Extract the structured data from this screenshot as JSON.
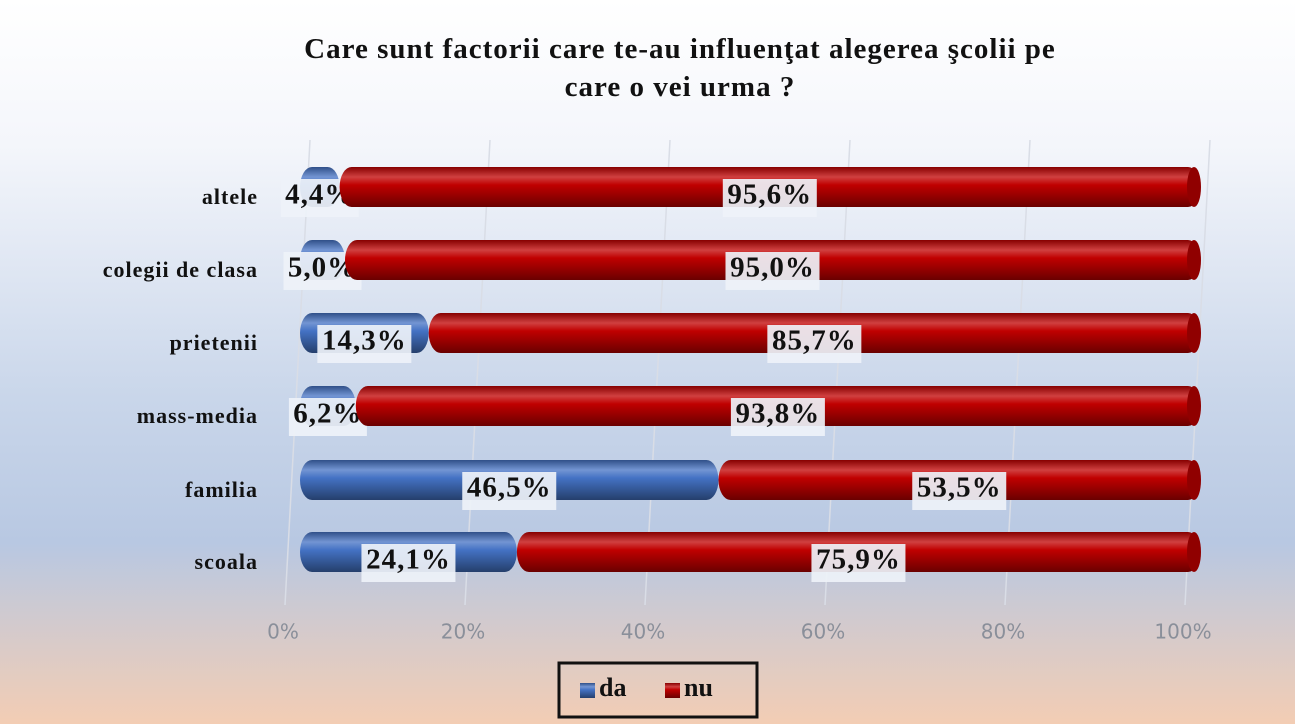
{
  "chart_data": {
    "type": "stacked-bar",
    "title": "Care sunt factorii care te-au influenţat alegerea şcolii pe care o vei urma ?",
    "categories": [
      "altele",
      "colegii de clasa",
      "prietenii",
      "mass-media",
      "familia",
      "scoala"
    ],
    "series": [
      {
        "name": "da",
        "color": "#4472c4",
        "values": [
          4.4,
          5.0,
          14.3,
          6.2,
          46.5,
          24.1
        ],
        "value_labels": [
          "4,4%",
          "5,0%",
          "14,3%",
          "6,2%",
          "46,5%",
          "24,1%"
        ]
      },
      {
        "name": "nu",
        "color": "#c00000",
        "values": [
          95.6,
          95.0,
          85.7,
          93.8,
          53.5,
          75.9
        ],
        "value_labels": [
          "95,6%",
          "95,0%",
          "85,7%",
          "93,8%",
          "53,5%",
          "75,9%"
        ]
      }
    ],
    "xlim": [
      0,
      100
    ],
    "xticks": [
      {
        "value": 0,
        "label": "0%"
      },
      {
        "value": 20,
        "label": "20%"
      },
      {
        "value": 40,
        "label": "40%"
      },
      {
        "value": 60,
        "label": "60%"
      },
      {
        "value": 80,
        "label": "80%"
      },
      {
        "value": 100,
        "label": "100%"
      }
    ],
    "grid": true,
    "legend": "bottom"
  }
}
